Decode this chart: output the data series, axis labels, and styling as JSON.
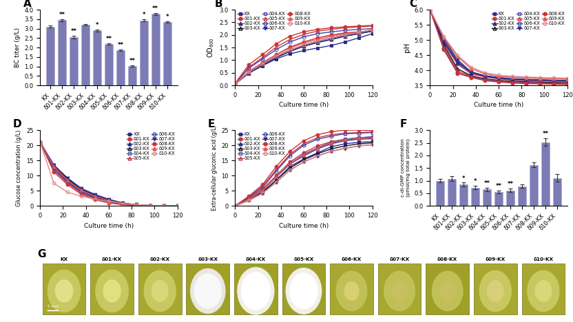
{
  "panel_A": {
    "categories": [
      "KX",
      "δ01-KX",
      "δ02-KX",
      "δ03-KX",
      "δ04-KX",
      "δ05-KX",
      "δ06-KX",
      "δ07-KX",
      "δ08-KX",
      "δ09-KX",
      "δ10-KX"
    ],
    "values": [
      3.1,
      3.45,
      2.55,
      3.2,
      2.9,
      2.18,
      1.85,
      1.03,
      3.43,
      3.77,
      3.35
    ],
    "errors": [
      0.06,
      0.06,
      0.07,
      0.05,
      0.05,
      0.04,
      0.04,
      0.04,
      0.06,
      0.06,
      0.05
    ],
    "significance": [
      "",
      "**",
      "**",
      "",
      "*",
      "**",
      "**",
      "**",
      "*",
      "**",
      "*"
    ],
    "ylabel": "BC titer (g/L)",
    "ylim": [
      0.0,
      4.0
    ],
    "yticks": [
      0.0,
      0.5,
      1.0,
      1.5,
      2.0,
      2.5,
      3.0,
      3.5,
      4.0
    ],
    "bar_color": "#7b7bb5"
  },
  "time_points": [
    0,
    12,
    24,
    36,
    48,
    60,
    72,
    84,
    96,
    108,
    120
  ],
  "panel_B": {
    "ylabel": "OD$_{600}$",
    "xlabel": "Culture time (h)",
    "ylim": [
      0.0,
      3.0
    ],
    "yticks": [
      0.0,
      0.5,
      1.0,
      1.5,
      2.0,
      2.5,
      3.0
    ],
    "series": {
      "KX": [
        0.05,
        0.48,
        0.78,
        1.05,
        1.25,
        1.38,
        1.48,
        1.58,
        1.72,
        1.88,
        2.05
      ],
      "d01-KX": [
        0.06,
        0.55,
        0.9,
        1.22,
        1.52,
        1.72,
        1.88,
        2.0,
        2.08,
        2.12,
        2.15
      ],
      "d02-KX": [
        0.06,
        0.52,
        0.85,
        1.15,
        1.4,
        1.6,
        1.75,
        1.88,
        2.0,
        2.1,
        2.2
      ],
      "d03-KX": [
        0.06,
        0.5,
        0.82,
        1.1,
        1.35,
        1.55,
        1.7,
        1.82,
        1.95,
        2.05,
        2.15
      ],
      "d04-KX": [
        0.06,
        0.52,
        0.85,
        1.15,
        1.4,
        1.6,
        1.75,
        1.88,
        2.0,
        2.1,
        2.2
      ],
      "d05-KX": [
        0.07,
        0.72,
        1.1,
        1.52,
        1.82,
        2.02,
        2.15,
        2.22,
        2.28,
        2.32,
        2.35
      ],
      "d06-KX": [
        0.07,
        0.68,
        1.05,
        1.42,
        1.72,
        1.92,
        2.05,
        2.12,
        2.18,
        2.22,
        2.25
      ],
      "d07-KX": [
        0.06,
        0.5,
        0.82,
        1.1,
        1.35,
        1.55,
        1.7,
        1.82,
        1.95,
        2.05,
        2.15
      ],
      "d08-KX": [
        0.08,
        0.82,
        1.22,
        1.65,
        1.95,
        2.12,
        2.22,
        2.28,
        2.32,
        2.35,
        2.38
      ],
      "d09-KX": [
        0.06,
        0.55,
        0.9,
        1.22,
        1.48,
        1.68,
        1.82,
        1.95,
        2.05,
        2.12,
        2.18
      ],
      "d10-KX": [
        0.06,
        0.52,
        0.85,
        1.15,
        1.4,
        1.6,
        1.75,
        1.88,
        2.0,
        2.1,
        2.2
      ]
    }
  },
  "panel_C": {
    "ylabel": "pH",
    "xlabel": "Culture time (h)",
    "ylim": [
      3.5,
      6.0
    ],
    "yticks": [
      3.5,
      4.0,
      4.5,
      5.0,
      5.5,
      6.0
    ],
    "series": {
      "KX": [
        6.0,
        5.05,
        4.35,
        3.95,
        3.82,
        3.76,
        3.72,
        3.7,
        3.68,
        3.67,
        3.66
      ],
      "d01-KX": [
        6.0,
        4.9,
        4.2,
        3.88,
        3.78,
        3.72,
        3.68,
        3.66,
        3.65,
        3.64,
        3.63
      ],
      "d02-KX": [
        6.0,
        4.95,
        4.25,
        3.92,
        3.8,
        3.73,
        3.7,
        3.68,
        3.67,
        3.66,
        3.65
      ],
      "d03-KX": [
        6.0,
        4.85,
        4.05,
        3.82,
        3.72,
        3.67,
        3.64,
        3.62,
        3.61,
        3.6,
        3.59
      ],
      "d04-KX": [
        6.0,
        5.0,
        4.3,
        3.95,
        3.82,
        3.76,
        3.72,
        3.7,
        3.68,
        3.67,
        3.66
      ],
      "d05-KX": [
        6.0,
        4.78,
        3.98,
        3.8,
        3.7,
        3.65,
        3.62,
        3.6,
        3.59,
        3.58,
        3.57
      ],
      "d06-KX": [
        6.0,
        4.72,
        3.92,
        3.78,
        3.68,
        3.63,
        3.6,
        3.58,
        3.57,
        3.56,
        3.55
      ],
      "d07-KX": [
        6.0,
        4.95,
        4.28,
        3.93,
        3.81,
        3.74,
        3.71,
        3.69,
        3.68,
        3.67,
        3.66
      ],
      "d08-KX": [
        6.0,
        4.68,
        3.9,
        3.76,
        3.66,
        3.61,
        3.58,
        3.56,
        3.55,
        3.54,
        3.53
      ],
      "d09-KX": [
        6.0,
        5.08,
        4.45,
        4.05,
        3.88,
        3.8,
        3.77,
        3.75,
        3.73,
        3.72,
        3.71
      ],
      "d10-KX": [
        6.0,
        5.12,
        4.5,
        4.1,
        3.92,
        3.84,
        3.8,
        3.78,
        3.76,
        3.75,
        3.74
      ]
    }
  },
  "panel_D": {
    "ylabel": "Glucose concentration (g/L)",
    "xlabel": "Culture time (h)",
    "ylim": [
      0,
      25
    ],
    "yticks": [
      0,
      5,
      10,
      15,
      20,
      25
    ],
    "series": {
      "KX": [
        21.0,
        13.0,
        8.5,
        5.2,
        3.2,
        1.8,
        0.8,
        0.3,
        0.1,
        0.05,
        0.02
      ],
      "d01-KX": [
        21.0,
        12.5,
        8.0,
        4.8,
        2.8,
        1.5,
        0.6,
        0.2,
        0.08,
        0.03,
        0.01
      ],
      "d02-KX": [
        21.0,
        13.5,
        9.0,
        5.5,
        3.5,
        2.0,
        0.9,
        0.35,
        0.12,
        0.05,
        0.02
      ],
      "d03-KX": [
        21.0,
        13.2,
        8.8,
        5.3,
        3.3,
        1.9,
        0.8,
        0.3,
        0.1,
        0.04,
        0.01
      ],
      "d04-KX": [
        21.0,
        12.8,
        8.3,
        5.0,
        3.0,
        1.6,
        0.7,
        0.25,
        0.09,
        0.04,
        0.01
      ],
      "d05-KX": [
        21.0,
        11.8,
        7.5,
        4.2,
        2.4,
        1.2,
        0.5,
        0.18,
        0.07,
        0.03,
        0.01
      ],
      "d06-KX": [
        21.0,
        12.0,
        7.8,
        4.5,
        2.6,
        1.4,
        0.6,
        0.22,
        0.08,
        0.03,
        0.01
      ],
      "d07-KX": [
        21.0,
        13.5,
        9.2,
        5.8,
        3.8,
        2.2,
        1.0,
        0.4,
        0.15,
        0.06,
        0.02
      ],
      "d08-KX": [
        21.0,
        11.2,
        7.0,
        3.8,
        2.0,
        1.0,
        0.4,
        0.12,
        0.05,
        0.02,
        0.01
      ],
      "d09-KX": [
        21.0,
        13.0,
        8.5,
        5.2,
        3.2,
        1.8,
        0.8,
        0.3,
        0.1,
        0.05,
        0.02
      ],
      "d10-KX": [
        21.0,
        7.5,
        4.5,
        3.2,
        2.2,
        1.5,
        0.8,
        0.4,
        0.2,
        0.1,
        0.05
      ]
    }
  },
  "panel_E": {
    "ylabel": "Extra-cellular gluconic acid (g/L)",
    "xlabel": "Culture time (h)",
    "ylim": [
      0,
      25
    ],
    "yticks": [
      0,
      5,
      10,
      15,
      20,
      25
    ],
    "series": {
      "KX": [
        0.0,
        2.0,
        4.5,
        8.5,
        13.0,
        15.5,
        17.5,
        19.5,
        20.5,
        21.0,
        21.2
      ],
      "d01-KX": [
        0.0,
        2.5,
        5.5,
        10.0,
        14.5,
        17.5,
        19.8,
        21.2,
        22.0,
        22.5,
        22.8
      ],
      "d02-KX": [
        0.0,
        2.2,
        5.0,
        9.5,
        13.8,
        16.5,
        18.8,
        20.5,
        21.5,
        22.0,
        22.2
      ],
      "d03-KX": [
        0.0,
        2.0,
        4.5,
        8.5,
        12.5,
        15.2,
        17.2,
        18.8,
        19.8,
        20.5,
        20.8
      ],
      "d04-KX": [
        0.0,
        2.2,
        5.0,
        9.5,
        14.0,
        17.0,
        19.2,
        21.0,
        22.0,
        22.5,
        22.8
      ],
      "d05-KX": [
        0.0,
        3.0,
        6.5,
        12.0,
        17.0,
        20.5,
        22.5,
        23.5,
        24.0,
        24.2,
        24.3
      ],
      "d06-KX": [
        0.0,
        2.8,
        6.0,
        11.5,
        16.5,
        20.0,
        22.0,
        23.0,
        23.8,
        24.0,
        24.2
      ],
      "d07-KX": [
        0.0,
        1.8,
        4.2,
        7.8,
        11.8,
        14.5,
        16.5,
        18.0,
        19.0,
        19.8,
        20.2
      ],
      "d08-KX": [
        0.0,
        3.2,
        7.0,
        13.0,
        18.0,
        21.5,
        23.5,
        24.5,
        25.0,
        25.0,
        24.8
      ],
      "d09-KX": [
        0.0,
        2.2,
        5.0,
        9.5,
        13.8,
        16.8,
        19.0,
        20.8,
        21.8,
        22.2,
        22.5
      ],
      "d10-KX": [
        0.0,
        1.8,
        4.2,
        7.8,
        11.8,
        14.5,
        16.5,
        18.0,
        19.0,
        19.8,
        20.2
      ]
    }
  },
  "panel_F": {
    "categories": [
      "KX",
      "δ01-KX",
      "δ02-KX",
      "δ03-KX",
      "δ04-KX",
      "δ05-KX",
      "δ06-KX",
      "δ07-KX",
      "δ08-KX",
      "δ09-KX",
      "δ10-KX"
    ],
    "values": [
      1.0,
      1.08,
      0.85,
      0.72,
      0.65,
      0.55,
      0.62,
      0.78,
      1.62,
      2.52,
      1.1
    ],
    "errors": [
      0.08,
      0.09,
      0.07,
      0.07,
      0.07,
      0.06,
      0.06,
      0.07,
      0.1,
      0.15,
      0.15
    ],
    "significance": [
      "",
      "",
      "*",
      "*",
      "**",
      "**",
      "**",
      "",
      "",
      "**",
      ""
    ],
    "ylabel": "c-di-GMP concentration\n(pmol/mg total protein)",
    "ylim": [
      0.0,
      3.0
    ],
    "yticks": [
      0.0,
      0.5,
      1.0,
      1.5,
      2.0,
      2.5,
      3.0
    ],
    "bar_color": "#7b7bb5"
  },
  "legend_B": {
    "row1": [
      "KX",
      "δ01-KX",
      "δ02-KX"
    ],
    "row2": [
      "δ03-KX",
      "δ04-KX",
      "δ05-KX"
    ],
    "row3": [
      "δ06-KX",
      "δ07-KX",
      "δ08-KX"
    ],
    "row4": [
      "δ09-KX",
      "δ10-KX"
    ]
  },
  "colony_labels_disp": [
    "KX",
    "δ01-KX",
    "δ02-KX",
    "δ03-KX",
    "δ04-KX",
    "δ05-KX",
    "δ06-KX",
    "δ07-KX",
    "δ08-KX",
    "δ09-KX",
    "δ10-KX"
  ]
}
